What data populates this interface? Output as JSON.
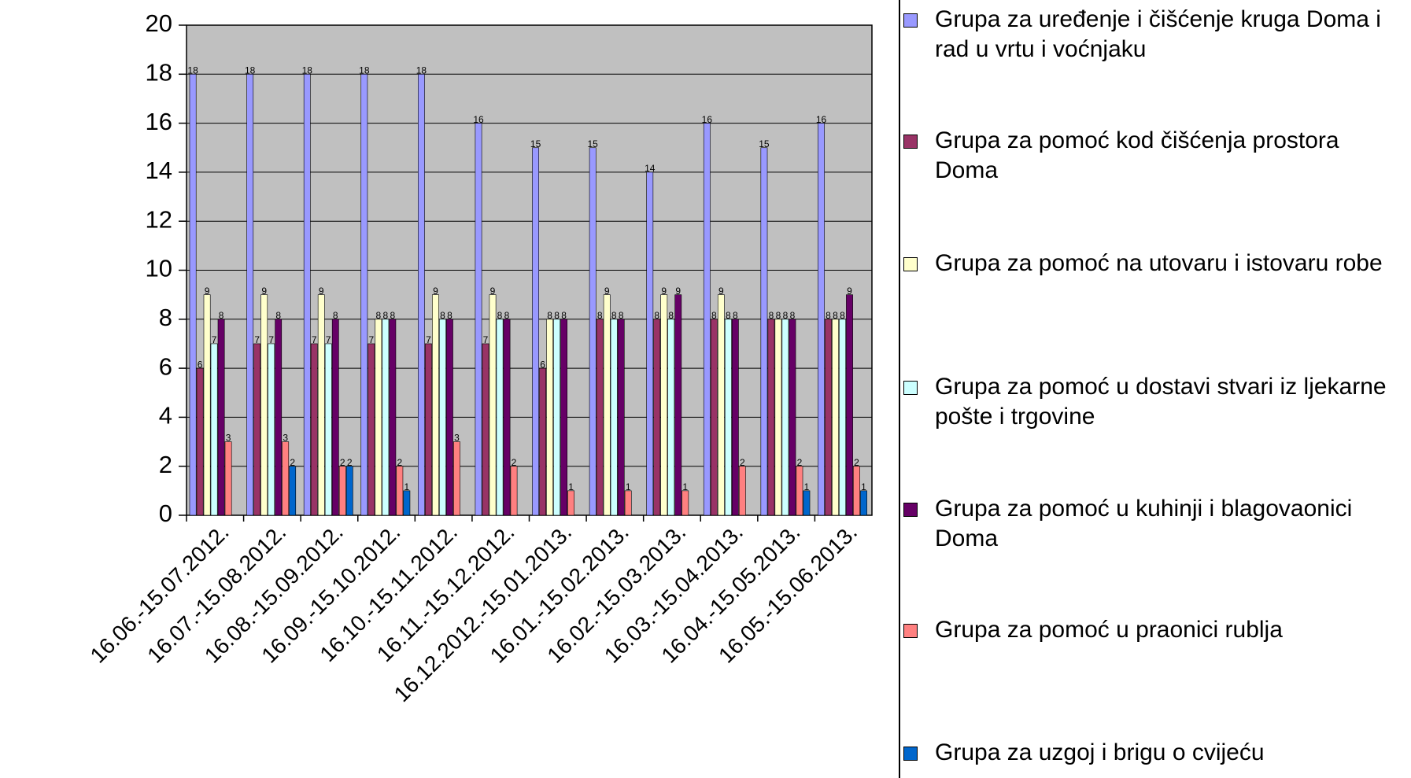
{
  "chart_data": {
    "type": "bar",
    "categories": [
      "16.06.-15.07.2012.",
      "16.07.-15.08.2012.",
      "16.08.-15.09.2012.",
      "16.09.-15.10.2012.",
      "16.10.-15.11.2012.",
      "16.11.-15.12.2012.",
      "16.12.2012.-15.01.2013.",
      "16.01.-15.02.2013.",
      "16.02.-15.03.2013.",
      "16.03.-15.04.2013.",
      "16.04.-15.05.2013.",
      "16.05.-15.06.2013."
    ],
    "series": [
      {
        "name": "Grupa za uređenje i čišćenje kruga Doma i rad u vrtu i voćnjaku",
        "color": "#9999ff",
        "values": [
          18,
          18,
          18,
          18,
          18,
          16,
          15,
          15,
          14,
          16,
          15,
          16
        ]
      },
      {
        "name": "Grupa za pomoć kod čišćenja prostora Doma",
        "color": "#993366",
        "values": [
          6,
          7,
          7,
          7,
          7,
          7,
          6,
          8,
          8,
          8,
          8,
          8
        ]
      },
      {
        "name": "Grupa za pomoć na utovaru i istovaru robe",
        "color": "#ffffcc",
        "values": [
          9,
          9,
          9,
          8,
          9,
          9,
          8,
          9,
          9,
          9,
          8,
          8
        ]
      },
      {
        "name": "Grupa za pomoć u dostavi stvari iz ljekarne pošte i trgovine",
        "color": "#ccffff",
        "values": [
          7,
          7,
          7,
          8,
          8,
          8,
          8,
          8,
          8,
          8,
          8,
          8
        ]
      },
      {
        "name": "Grupa za pomoć u kuhinji i blagovaonici Doma",
        "color": "#660066",
        "values": [
          8,
          8,
          8,
          8,
          8,
          8,
          8,
          8,
          9,
          8,
          8,
          9
        ]
      },
      {
        "name": "Grupa za pomoć u praonici rublja",
        "color": "#ff8080",
        "values": [
          3,
          3,
          2,
          2,
          3,
          2,
          1,
          1,
          1,
          2,
          2,
          2
        ]
      },
      {
        "name": "Grupa za uzgoj i brigu o cvijeću",
        "color": "#0066cc",
        "values": [
          0,
          2,
          2,
          1,
          0,
          0,
          0,
          0,
          0,
          0,
          1,
          1
        ]
      }
    ],
    "ylim": [
      0,
      20
    ],
    "yticks": [
      0,
      2,
      4,
      6,
      8,
      10,
      12,
      14,
      16,
      18,
      20
    ],
    "grid": true,
    "legend": "right"
  }
}
